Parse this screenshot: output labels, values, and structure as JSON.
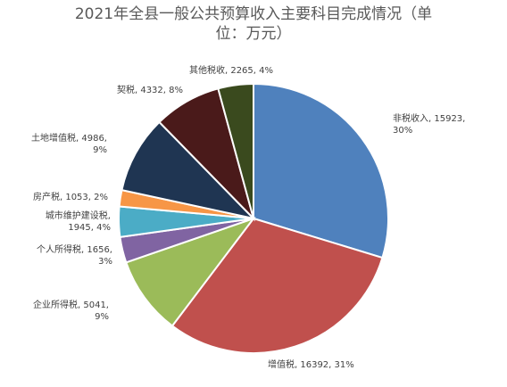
{
  "chart_data": {
    "type": "pie",
    "title_line1": "2021年全县一般公共预算收入主要科目完成情况（单",
    "title_line2": "位：万元）",
    "slices": [
      {
        "name": "非税收入",
        "value": 15923,
        "percent": "30%",
        "color": "#4f81bd",
        "label_lines": [
          "非税收入, 15923,",
          "30%"
        ]
      },
      {
        "name": "增值税",
        "value": 16392,
        "percent": "31%",
        "color": "#c0504d",
        "label_lines": [
          "增值税, 16392, 31%"
        ]
      },
      {
        "name": "企业所得税",
        "value": 5041,
        "percent": "9%",
        "color": "#9bbb59",
        "label_lines": [
          "企业所得税, 5041,",
          "9%"
        ]
      },
      {
        "name": "个人所得税",
        "value": 1656,
        "percent": "3%",
        "color": "#8064a2",
        "label_lines": [
          "个人所得税, 1656,",
          "3%"
        ]
      },
      {
        "name": "城市维护建设税",
        "value": 1945,
        "percent": "4%",
        "color": "#4bacc6",
        "label_lines": [
          "城市维护建设税,",
          "1945, 4%"
        ]
      },
      {
        "name": "房产税",
        "value": 1053,
        "percent": "2%",
        "color": "#f79646",
        "label_lines": [
          "房产税, 1053, 2%"
        ]
      },
      {
        "name": "土地增值税",
        "value": 4986,
        "percent": "9%",
        "color": "#1f3552",
        "label_lines": [
          "土地增值税, 4986,",
          "9%"
        ]
      },
      {
        "name": "契税",
        "value": 4332,
        "percent": "8%",
        "color": "#4a1a1a",
        "label_lines": [
          "契税, 4332, 8%"
        ]
      },
      {
        "name": "其他税收",
        "value": 2265,
        "percent": "4%",
        "color": "#3a4a1e",
        "label_lines": [
          "其他税收, 2265, 4%"
        ]
      }
    ]
  }
}
